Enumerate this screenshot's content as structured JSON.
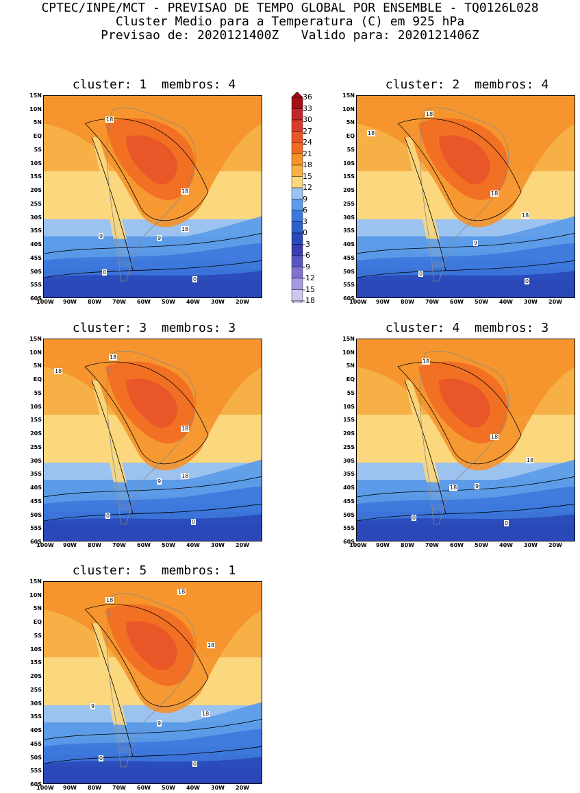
{
  "header": {
    "line1": "CPTEC/INPE/MCT - PREVISAO DE TEMPO GLOBAL POR ENSEMBLE - TQ0126L028",
    "line2": "Cluster Medio para a Temperatura (C) em 925 hPa",
    "line3": "Previsao de: 2020121400Z   Valido para: 2020121406Z"
  },
  "panels": [
    {
      "title": "cluster: 1  membros: 4",
      "labels": [
        "18",
        "18",
        "18",
        "9",
        "9",
        "0",
        "0"
      ]
    },
    {
      "title": "cluster: 2  membros: 4",
      "labels": [
        "18",
        "18",
        "18",
        "18",
        "9",
        "0",
        "0"
      ]
    },
    {
      "title": "cluster: 3  membros: 3",
      "labels": [
        "18",
        "18",
        "18",
        "18",
        "9",
        "0",
        "0"
      ]
    },
    {
      "title": "cluster: 4  membros: 3",
      "labels": [
        "18",
        "18",
        "18",
        "18",
        "9",
        "0",
        "0"
      ]
    },
    {
      "title": "cluster: 5  membros: 1",
      "labels": [
        "18",
        "18",
        "18",
        "18",
        "9",
        "9",
        "0",
        "0"
      ]
    }
  ],
  "axes": {
    "lat": [
      "15N",
      "10N",
      "5N",
      "EQ",
      "5S",
      "10S",
      "15S",
      "20S",
      "25S",
      "30S",
      "35S",
      "40S",
      "45S",
      "50S",
      "55S",
      "60S"
    ],
    "lon": [
      "100W",
      "90W",
      "80W",
      "70W",
      "60W",
      "50W",
      "40W",
      "30W",
      "20W"
    ]
  },
  "colorbar": {
    "labels": [
      "36",
      "33",
      "30",
      "27",
      "24",
      "21",
      "18",
      "15",
      "12",
      "9",
      "6",
      "3",
      "0",
      "-3",
      "-6",
      "-9",
      "-12",
      "-15",
      "-18"
    ],
    "colors": [
      "#a50f15",
      "#c0282b",
      "#d83b2b",
      "#e8542a",
      "#f26b22",
      "#f5922a",
      "#f7b046",
      "#fbd77d",
      "#9cc3ef",
      "#5c9be8",
      "#3d78dc",
      "#2d5fc9",
      "#2a48b8",
      "#3a3fb0",
      "#5a55c0",
      "#7f73cf",
      "#a69be0",
      "#cfc6f0"
    ]
  }
}
